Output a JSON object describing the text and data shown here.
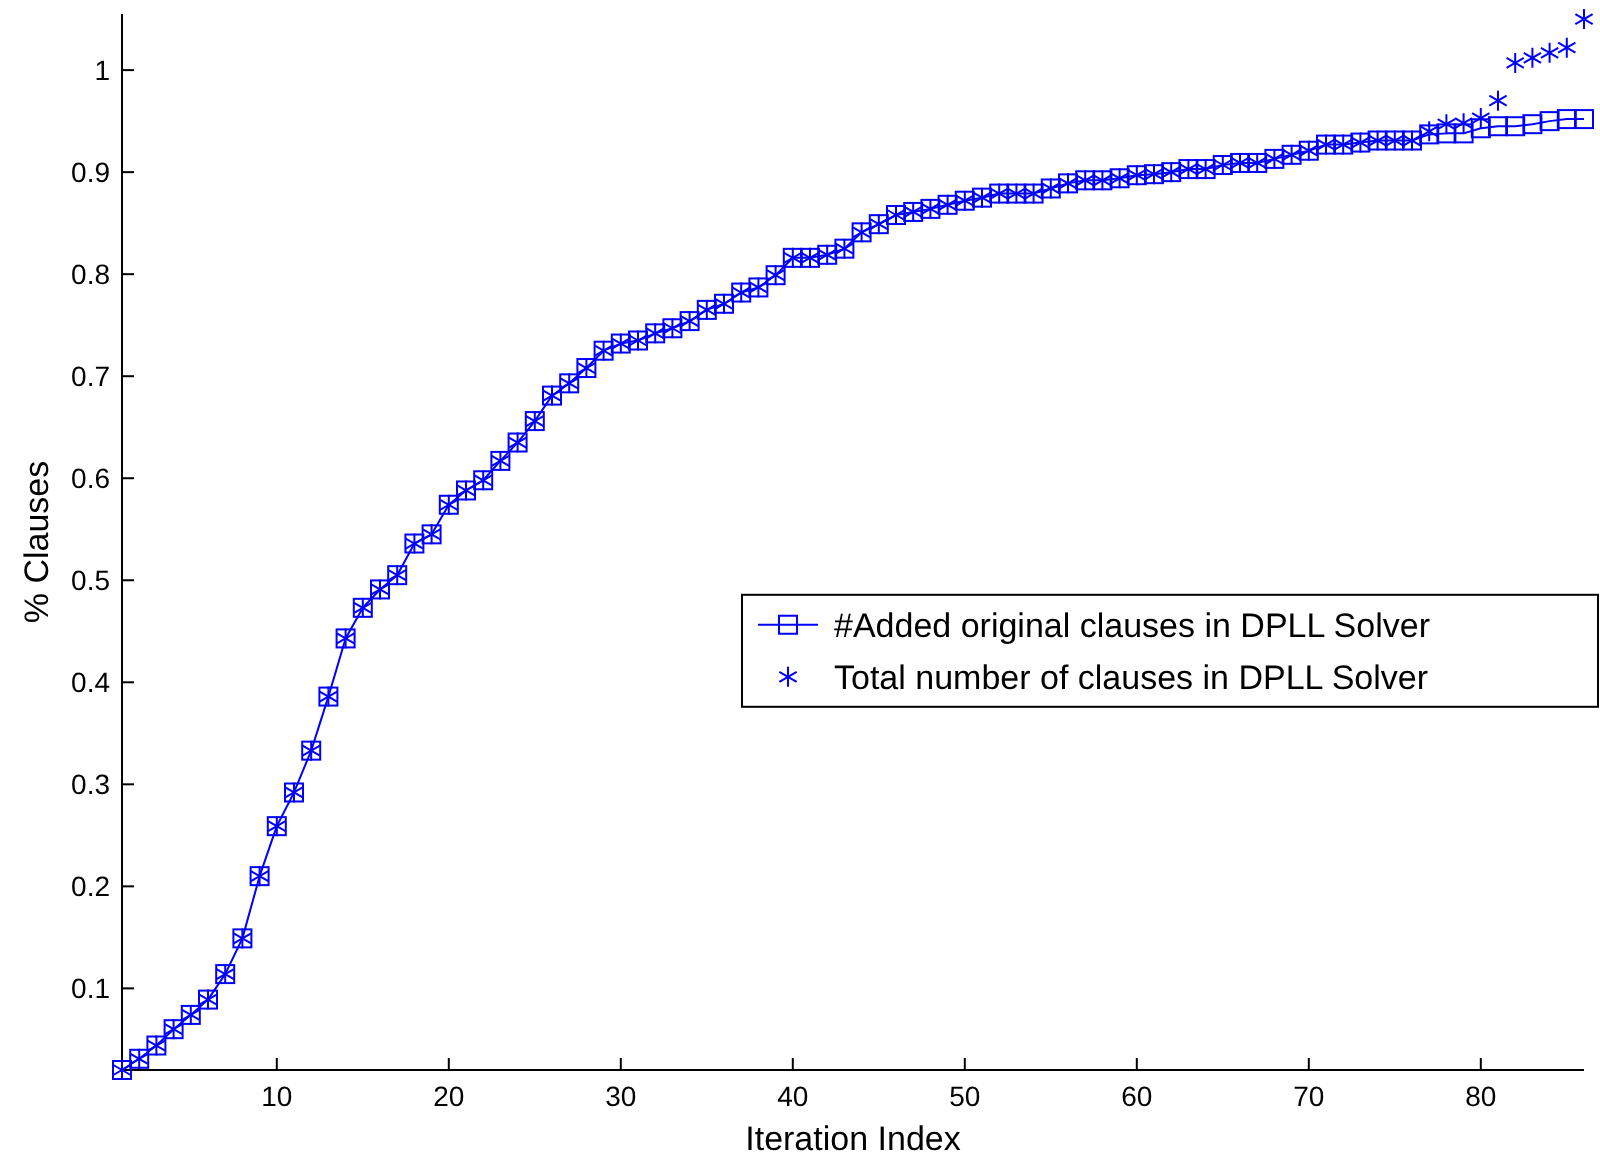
{
  "chart_data": {
    "type": "line",
    "xlabel": "Iteration Index",
    "ylabel": "% Clauses",
    "x": [
      1,
      2,
      3,
      4,
      5,
      6,
      7,
      8,
      9,
      10,
      11,
      12,
      13,
      14,
      15,
      16,
      17,
      18,
      19,
      20,
      21,
      22,
      23,
      24,
      25,
      26,
      27,
      28,
      29,
      30,
      31,
      32,
      33,
      34,
      35,
      36,
      37,
      38,
      39,
      40,
      41,
      42,
      43,
      44,
      45,
      46,
      47,
      48,
      49,
      50,
      51,
      52,
      53,
      54,
      55,
      56,
      57,
      58,
      59,
      60,
      61,
      62,
      63,
      64,
      65,
      66,
      67,
      68,
      69,
      70,
      71,
      72,
      73,
      74,
      75,
      76,
      77,
      78,
      79,
      80,
      81,
      82,
      83,
      84,
      85,
      86
    ],
    "series": [
      {
        "name": "#Added original clauses in DPLL Solver",
        "type": "line",
        "marker": "square",
        "line_style": "solid",
        "color": "#0000ff",
        "values": [
          0.02,
          0.031,
          0.044,
          0.06,
          0.074,
          0.089,
          0.114,
          0.149,
          0.21,
          0.259,
          0.292,
          0.333,
          0.386,
          0.443,
          0.473,
          0.491,
          0.505,
          0.536,
          0.545,
          0.574,
          0.588,
          0.598,
          0.617,
          0.635,
          0.656,
          0.681,
          0.693,
          0.708,
          0.725,
          0.732,
          0.735,
          0.742,
          0.747,
          0.754,
          0.765,
          0.771,
          0.782,
          0.787,
          0.799,
          0.816,
          0.816,
          0.819,
          0.825,
          0.841,
          0.849,
          0.858,
          0.861,
          0.864,
          0.868,
          0.872,
          0.875,
          0.879,
          0.879,
          0.879,
          0.884,
          0.889,
          0.892,
          0.892,
          0.894,
          0.897,
          0.898,
          0.9,
          0.903,
          0.903,
          0.907,
          0.909,
          0.909,
          0.913,
          0.917,
          0.921,
          0.927,
          0.927,
          0.929,
          0.931,
          0.931,
          0.931,
          0.937,
          0.938,
          0.938,
          0.943,
          0.945,
          0.945,
          0.947,
          0.95,
          0.952,
          0.952
        ]
      },
      {
        "name": "Total number of clauses in DPLL Solver",
        "type": "scatter",
        "marker": "cross",
        "color": "#0000ff",
        "values": [
          0.02,
          0.031,
          0.044,
          0.06,
          0.074,
          0.089,
          0.114,
          0.149,
          0.21,
          0.259,
          0.292,
          0.333,
          0.386,
          0.443,
          0.473,
          0.491,
          0.505,
          0.536,
          0.545,
          0.574,
          0.588,
          0.598,
          0.617,
          0.635,
          0.656,
          0.681,
          0.693,
          0.708,
          0.725,
          0.732,
          0.735,
          0.742,
          0.747,
          0.754,
          0.765,
          0.771,
          0.782,
          0.787,
          0.799,
          0.816,
          0.816,
          0.819,
          0.825,
          0.841,
          0.849,
          0.858,
          0.861,
          0.864,
          0.868,
          0.872,
          0.875,
          0.879,
          0.879,
          0.879,
          0.884,
          0.889,
          0.892,
          0.892,
          0.894,
          0.897,
          0.898,
          0.9,
          0.903,
          0.903,
          0.907,
          0.909,
          0.909,
          0.913,
          0.917,
          0.921,
          0.927,
          0.927,
          0.929,
          0.931,
          0.931,
          0.931,
          0.94,
          0.947,
          0.948,
          0.953,
          0.97,
          1.007,
          1.012,
          1.017,
          1.022,
          1.05
        ]
      }
    ],
    "xlim": [
      1,
      86
    ],
    "ylim": [
      0.02,
      1.055
    ],
    "xticks": [
      10,
      20,
      30,
      40,
      50,
      60,
      70,
      80
    ],
    "yticks": [
      0.1,
      0.2,
      0.3,
      0.4,
      0.5,
      0.6,
      0.7,
      0.8,
      0.9,
      1
    ],
    "grid": false,
    "legend": "right"
  }
}
